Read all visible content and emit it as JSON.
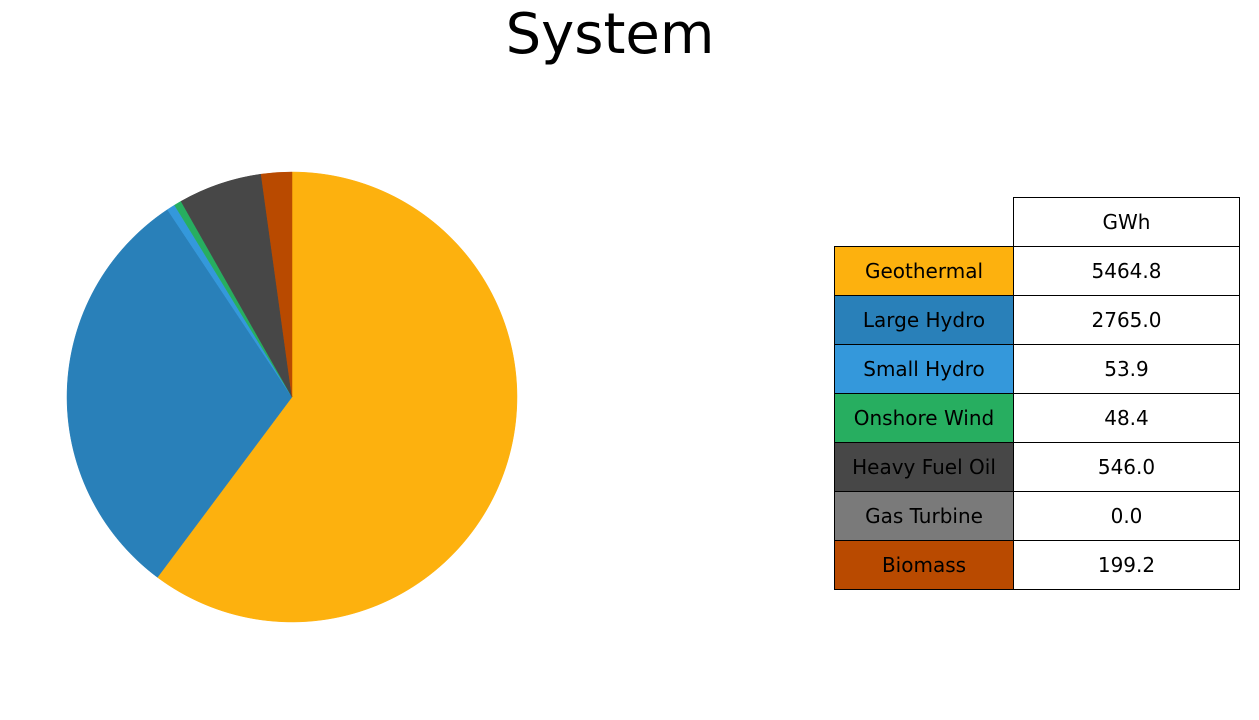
{
  "chart_data": {
    "type": "pie",
    "title": "System",
    "value_header": "GWh",
    "start_angle_deg": 90,
    "direction": "clockwise",
    "slices": [
      {
        "label": "Geothermal",
        "value": 5464.8,
        "display": "5464.8",
        "color": "#FDB10E"
      },
      {
        "label": "Large Hydro",
        "value": 2765.0,
        "display": "2765.0",
        "color": "#2980B9"
      },
      {
        "label": "Small Hydro",
        "value": 53.9,
        "display": "53.9",
        "color": "#3498DB"
      },
      {
        "label": "Onshore Wind",
        "value": 48.4,
        "display": "48.4",
        "color": "#27AE60"
      },
      {
        "label": "Heavy Fuel Oil",
        "value": 546.0,
        "display": "546.0",
        "color": "#474747"
      },
      {
        "label": "Gas Turbine",
        "value": 0.0,
        "display": "0.0",
        "color": "#7A7A7A"
      },
      {
        "label": "Biomass",
        "value": 199.2,
        "display": "199.2",
        "color": "#B94A00"
      }
    ]
  }
}
